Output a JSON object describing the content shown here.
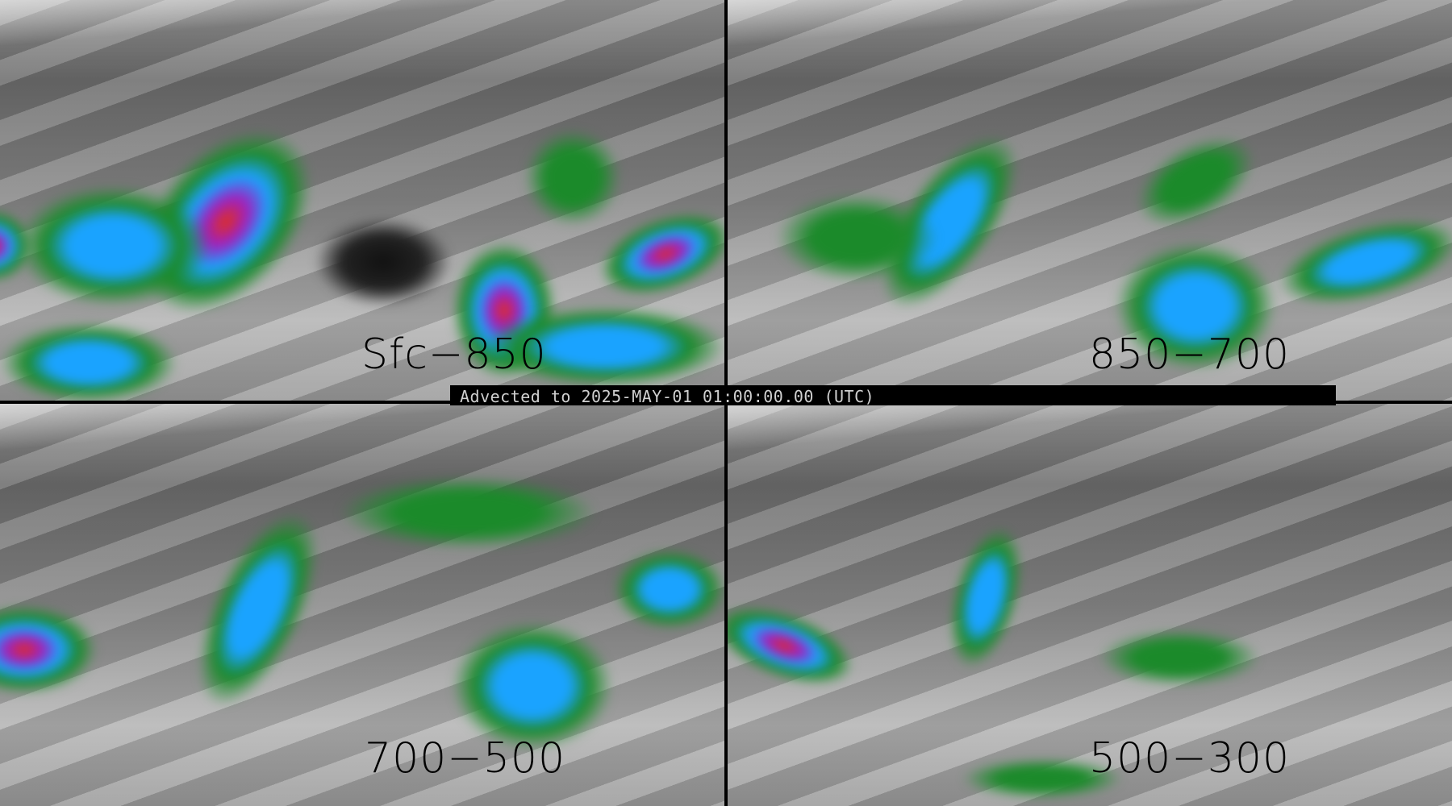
{
  "panels": [
    {
      "label": "Sfc−850"
    },
    {
      "label": "850−700"
    },
    {
      "label": "700−500"
    },
    {
      "label": "500−300"
    }
  ],
  "timestamp": "Advected to 2025-MAY-01 01:00:00.00 (UTC)",
  "colors": {
    "background_gray": "#8a8a8a",
    "green": "#1b8a2a",
    "blue": "#1aa3ff",
    "purple": "#a020c0",
    "red": "#e0301a",
    "border": "#000000"
  }
}
